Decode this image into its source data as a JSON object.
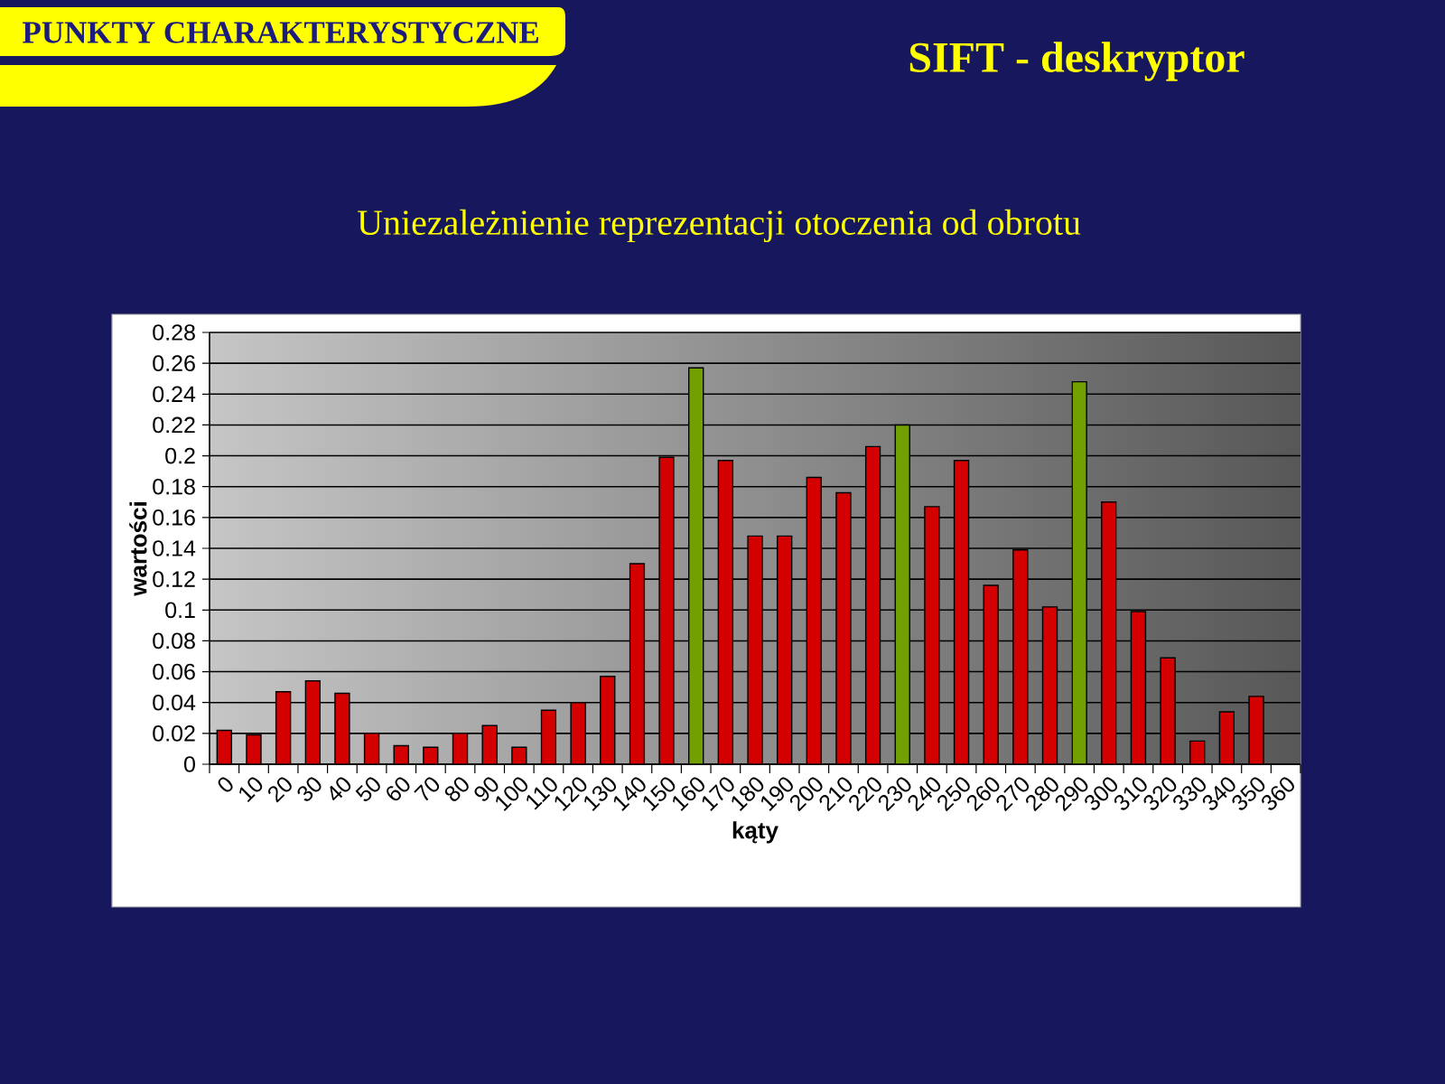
{
  "chart_data": {
    "type": "bar",
    "title": "SIFT - deskryptor",
    "subtitle": "Uniezależnienie reprezentacji otoczenia od obrotu",
    "annotations": [
      "PUNKTY CHARAKTERYSTYCZNE"
    ],
    "xlabel": "kąty",
    "ylabel": "wartości",
    "categories": [
      "0",
      "10",
      "20",
      "30",
      "40",
      "50",
      "60",
      "70",
      "80",
      "90",
      "100",
      "110",
      "120",
      "130",
      "140",
      "150",
      "160",
      "170",
      "180",
      "190",
      "200",
      "210",
      "220",
      "230",
      "240",
      "250",
      "260",
      "270",
      "280",
      "290",
      "300",
      "310",
      "320",
      "330",
      "340",
      "350",
      "360"
    ],
    "values": [
      0.022,
      0.019,
      0.047,
      0.054,
      0.046,
      0.02,
      0.012,
      0.011,
      0.02,
      0.025,
      0.011,
      0.035,
      0.04,
      0.057,
      0.13,
      0.199,
      0.257,
      0.197,
      0.148,
      0.148,
      0.186,
      0.176,
      0.206,
      0.22,
      0.167,
      0.197,
      0.116,
      0.139,
      0.102,
      0.248,
      0.17,
      0.099,
      0.069,
      0.015,
      0.034,
      0.044,
      null
    ],
    "colors": [
      "#d40000",
      "#d40000",
      "#d40000",
      "#d40000",
      "#d40000",
      "#d40000",
      "#d40000",
      "#d40000",
      "#d40000",
      "#d40000",
      "#d40000",
      "#d40000",
      "#d40000",
      "#d40000",
      "#d40000",
      "#d40000",
      "#72a000",
      "#d40000",
      "#d40000",
      "#d40000",
      "#d40000",
      "#d40000",
      "#d40000",
      "#72a000",
      "#d40000",
      "#d40000",
      "#d40000",
      "#d40000",
      "#d40000",
      "#72a000",
      "#d40000",
      "#d40000",
      "#d40000",
      "#d40000",
      "#d40000",
      "#d40000",
      null
    ],
    "ylim": [
      0,
      0.28
    ],
    "yticks": [
      0,
      0.02,
      0.04,
      0.06,
      0.08,
      0.1,
      0.12,
      0.14,
      0.16,
      0.18,
      0.2,
      0.22,
      0.24,
      0.26,
      0.28
    ],
    "grid": "y"
  }
}
